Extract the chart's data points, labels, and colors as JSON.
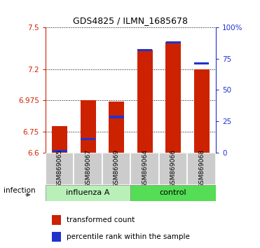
{
  "title": "GDS4825 / ILMN_1685678",
  "samples": [
    "GSM869065",
    "GSM869067",
    "GSM869069",
    "GSM869064",
    "GSM869066",
    "GSM869068"
  ],
  "baseline": 6.6,
  "ylim_left": [
    6.6,
    7.5
  ],
  "yticks_left": [
    6.6,
    6.75,
    6.975,
    7.2,
    7.5
  ],
  "ylim_right": [
    0,
    100
  ],
  "yticks_right": [
    0,
    25,
    50,
    75,
    100
  ],
  "ytick_labels_right": [
    "0",
    "25",
    "50",
    "75",
    "100%"
  ],
  "red_values": [
    6.79,
    6.975,
    6.965,
    7.34,
    7.395,
    7.2
  ],
  "blue_values": [
    6.612,
    6.695,
    6.855,
    7.335,
    7.39,
    7.24
  ],
  "bar_width": 0.55,
  "red_color": "#cc2200",
  "blue_color": "#2233cc",
  "left_axis_color": "#cc2200",
  "right_axis_color": "#2233cc",
  "legend_red_label": "transformed count",
  "legend_blue_label": "percentile rank within the sample",
  "infection_label": "infection",
  "group_label_influenza": "influenza A",
  "group_label_control": "control",
  "influenza_color": "#b8f0b8",
  "control_color": "#55dd55",
  "grey_box_color": "#cccccc",
  "title_fontsize": 9,
  "tick_fontsize": 7.5,
  "legend_fontsize": 7.5
}
